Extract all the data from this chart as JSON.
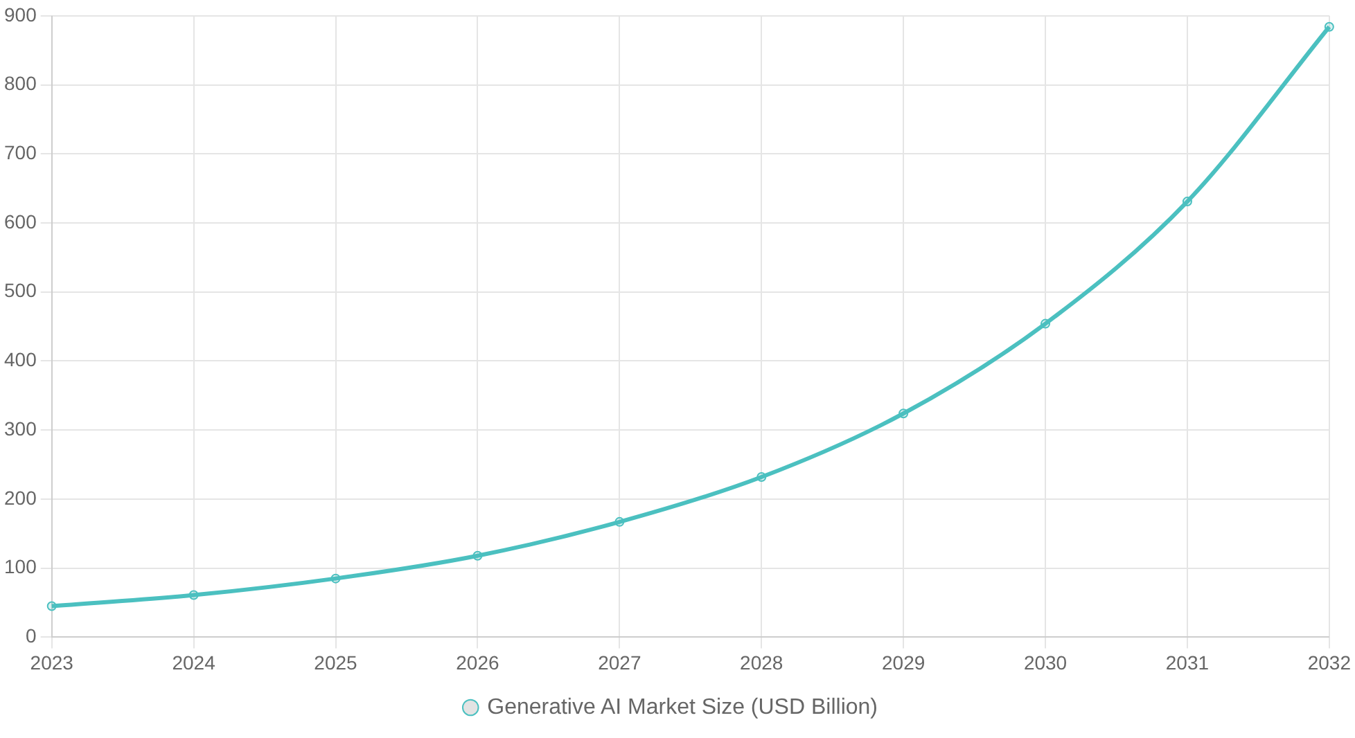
{
  "chart_data": {
    "type": "line",
    "categories": [
      "2023",
      "2024",
      "2025",
      "2026",
      "2027",
      "2028",
      "2029",
      "2030",
      "2031",
      "2032"
    ],
    "series": [
      {
        "name": "Generative AI Market Size (USD Billion)",
        "color": "#4bc0c0",
        "values": [
          45,
          61,
          85,
          118,
          167,
          232,
          324,
          454,
          631,
          884
        ]
      }
    ],
    "ylim": [
      0,
      900
    ],
    "yticks": [
      0,
      100,
      200,
      300,
      400,
      500,
      600,
      700,
      800,
      900
    ],
    "grid": true,
    "legend": "bottom",
    "marker": "circle",
    "line_style": "solid"
  }
}
